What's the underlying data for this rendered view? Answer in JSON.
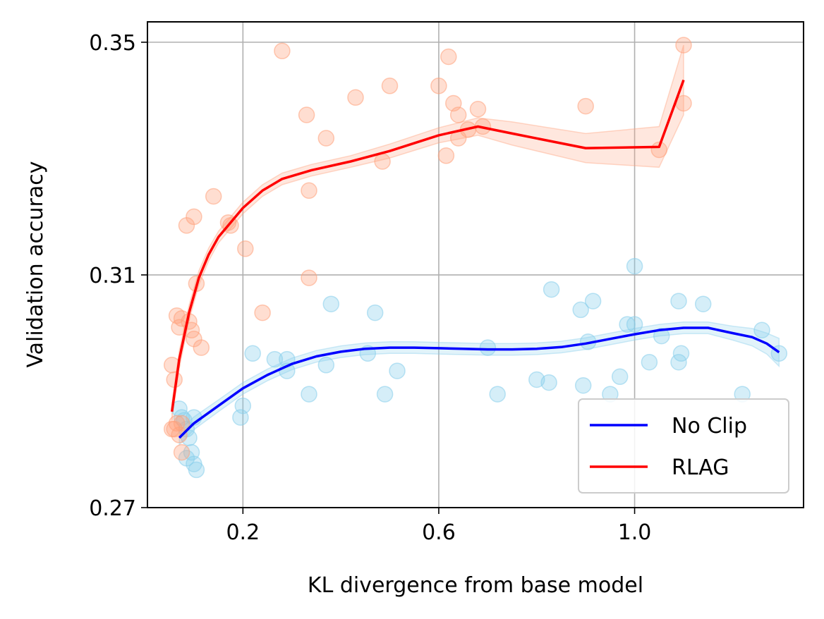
{
  "chart_data": {
    "type": "scatter",
    "xlabel": "KL divergence from base model",
    "ylabel": "Validation accuracy",
    "xlim": [
      0.005,
      1.345
    ],
    "ylim": [
      0.27,
      0.3535
    ],
    "xticks": [
      0.2,
      0.6,
      1.0
    ],
    "xtick_labels": [
      "0.2",
      "0.6",
      "1.0"
    ],
    "yticks": [
      0.27,
      0.31,
      0.35
    ],
    "ytick_labels": [
      "0.27",
      "0.31",
      "0.35"
    ],
    "grid": true,
    "legend_position": "bottom-right",
    "series": [
      {
        "name": "No Clip",
        "line_color": "#0000ff",
        "point_color": "#87ceeb",
        "points": [
          [
            0.07,
            0.287
          ],
          [
            0.075,
            0.2855
          ],
          [
            0.08,
            0.285
          ],
          [
            0.085,
            0.2835
          ],
          [
            0.09,
            0.282
          ],
          [
            0.095,
            0.2795
          ],
          [
            0.1,
            0.2775
          ],
          [
            0.105,
            0.2765
          ],
          [
            0.1,
            0.2855
          ],
          [
            0.085,
            0.2785
          ],
          [
            0.2,
            0.2875
          ],
          [
            0.195,
            0.2855
          ],
          [
            0.22,
            0.2965
          ],
          [
            0.265,
            0.2955
          ],
          [
            0.29,
            0.2955
          ],
          [
            0.29,
            0.2935
          ],
          [
            0.335,
            0.2895
          ],
          [
            0.37,
            0.2945
          ],
          [
            0.38,
            0.305
          ],
          [
            0.455,
            0.2965
          ],
          [
            0.49,
            0.2895
          ],
          [
            0.515,
            0.2935
          ],
          [
            0.47,
            0.3035
          ],
          [
            0.7,
            0.2975
          ],
          [
            0.72,
            0.2895
          ],
          [
            0.8,
            0.292
          ],
          [
            0.825,
            0.2915
          ],
          [
            0.83,
            0.3075
          ],
          [
            0.89,
            0.304
          ],
          [
            0.905,
            0.2985
          ],
          [
            0.895,
            0.291
          ],
          [
            0.915,
            0.3055
          ],
          [
            0.95,
            0.2895
          ],
          [
            0.97,
            0.2925
          ],
          [
            0.985,
            0.3015
          ],
          [
            1.0,
            0.3015
          ],
          [
            1.0,
            0.3115
          ],
          [
            1.03,
            0.295
          ],
          [
            1.055,
            0.2995
          ],
          [
            1.09,
            0.3055
          ],
          [
            1.09,
            0.295
          ],
          [
            1.095,
            0.2965
          ],
          [
            1.14,
            0.305
          ],
          [
            1.22,
            0.2895
          ],
          [
            1.26,
            0.3005
          ],
          [
            1.295,
            0.2965
          ]
        ],
        "curve": [
          [
            0.07,
            0.282
          ],
          [
            0.1,
            0.2845
          ],
          [
            0.15,
            0.2875
          ],
          [
            0.2,
            0.2905
          ],
          [
            0.25,
            0.2928
          ],
          [
            0.3,
            0.2947
          ],
          [
            0.35,
            0.296
          ],
          [
            0.4,
            0.2968
          ],
          [
            0.45,
            0.2973
          ],
          [
            0.5,
            0.2975
          ],
          [
            0.55,
            0.2975
          ],
          [
            0.6,
            0.2974
          ],
          [
            0.65,
            0.2973
          ],
          [
            0.7,
            0.2972
          ],
          [
            0.75,
            0.2972
          ],
          [
            0.8,
            0.2973
          ],
          [
            0.85,
            0.2976
          ],
          [
            0.9,
            0.2982
          ],
          [
            0.95,
            0.299
          ],
          [
            1.0,
            0.2998
          ],
          [
            1.05,
            0.3005
          ],
          [
            1.1,
            0.3009
          ],
          [
            1.15,
            0.3009
          ],
          [
            1.2,
            0.3
          ],
          [
            1.24,
            0.2993
          ],
          [
            1.27,
            0.2982
          ],
          [
            1.295,
            0.2967
          ]
        ],
        "band_halfwidth": [
          0.0012,
          0.0011,
          0.001,
          0.001,
          0.001,
          0.001,
          0.001,
          0.001,
          0.001,
          0.001,
          0.001,
          0.001,
          0.001,
          0.001,
          0.001,
          0.001,
          0.001,
          0.001,
          0.001,
          0.001,
          0.001,
          0.001,
          0.001,
          0.0012,
          0.0015,
          0.0018,
          0.0024
        ]
      },
      {
        "name": "RLAG",
        "line_color": "#ff0000",
        "point_color": "#ffa07a",
        "points": [
          [
            0.055,
            0.2835
          ],
          [
            0.06,
            0.2835
          ],
          [
            0.065,
            0.2845
          ],
          [
            0.07,
            0.2825
          ],
          [
            0.075,
            0.2845
          ],
          [
            0.055,
            0.2945
          ],
          [
            0.06,
            0.292
          ],
          [
            0.065,
            0.303
          ],
          [
            0.07,
            0.301
          ],
          [
            0.075,
            0.3025
          ],
          [
            0.09,
            0.302
          ],
          [
            0.095,
            0.3005
          ],
          [
            0.1,
            0.299
          ],
          [
            0.105,
            0.3085
          ],
          [
            0.115,
            0.2975
          ],
          [
            0.075,
            0.2795
          ],
          [
            0.085,
            0.3185
          ],
          [
            0.1,
            0.32
          ],
          [
            0.14,
            0.3235
          ],
          [
            0.17,
            0.319
          ],
          [
            0.175,
            0.3185
          ],
          [
            0.205,
            0.3145
          ],
          [
            0.24,
            0.3035
          ],
          [
            0.28,
            0.3485
          ],
          [
            0.33,
            0.3375
          ],
          [
            0.335,
            0.3245
          ],
          [
            0.335,
            0.3095
          ],
          [
            0.37,
            0.3335
          ],
          [
            0.43,
            0.3405
          ],
          [
            0.485,
            0.3295
          ],
          [
            0.5,
            0.3425
          ],
          [
            0.6,
            0.3425
          ],
          [
            0.62,
            0.3475
          ],
          [
            0.615,
            0.3305
          ],
          [
            0.63,
            0.3395
          ],
          [
            0.64,
            0.3375
          ],
          [
            0.64,
            0.3335
          ],
          [
            0.66,
            0.335
          ],
          [
            0.68,
            0.3385
          ],
          [
            0.69,
            0.3355
          ],
          [
            0.9,
            0.339
          ],
          [
            1.05,
            0.3315
          ],
          [
            1.1,
            0.3495
          ],
          [
            1.1,
            0.3395
          ]
        ],
        "curve": [
          [
            0.055,
            0.2865
          ],
          [
            0.07,
            0.2955
          ],
          [
            0.09,
            0.3035
          ],
          [
            0.11,
            0.3095
          ],
          [
            0.13,
            0.3135
          ],
          [
            0.15,
            0.3165
          ],
          [
            0.17,
            0.3185
          ],
          [
            0.2,
            0.3215
          ],
          [
            0.24,
            0.3245
          ],
          [
            0.28,
            0.3265
          ],
          [
            0.34,
            0.328
          ],
          [
            0.42,
            0.3295
          ],
          [
            0.5,
            0.3313
          ],
          [
            0.6,
            0.334
          ],
          [
            0.68,
            0.3355
          ],
          [
            0.75,
            0.3343
          ],
          [
            0.9,
            0.3318
          ],
          [
            1.05,
            0.332
          ],
          [
            1.1,
            0.3435
          ]
        ],
        "band_halfwidth": [
          0.0015,
          0.0015,
          0.0013,
          0.0012,
          0.0011,
          0.001,
          0.001,
          0.001,
          0.001,
          0.001,
          0.001,
          0.001,
          0.0012,
          0.0013,
          0.0015,
          0.002,
          0.0025,
          0.0035,
          0.006
        ]
      }
    ]
  }
}
